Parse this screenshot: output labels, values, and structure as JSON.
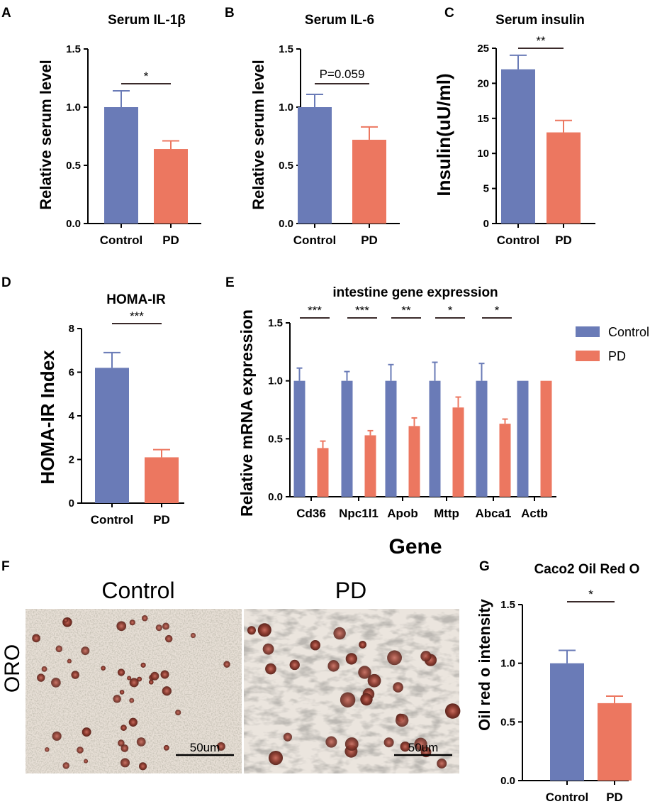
{
  "colors": {
    "control": "#6a7bb7",
    "pd": "#ec7760",
    "axis": "#000000",
    "sigline": "#3a2a2a",
    "bg": "#ffffff"
  },
  "chart_data": [
    {
      "id": "A",
      "panel_label": "A",
      "type": "bar",
      "title": "Serum IL-1β",
      "ylabel": "Relative serum level",
      "xlabel": "",
      "ylim": [
        0,
        1.5
      ],
      "yticks": [
        "0.0",
        "0.5",
        "1.0",
        "1.5"
      ],
      "categories": [
        "Control",
        "PD"
      ],
      "values": [
        1.0,
        0.64
      ],
      "errors": [
        0.14,
        0.07
      ],
      "sig": [
        {
          "label": "*"
        }
      ]
    },
    {
      "id": "B",
      "panel_label": "B",
      "type": "bar",
      "title": "Serum IL-6",
      "ylabel": "Relative serum level",
      "xlabel": "",
      "ylim": [
        0,
        1.5
      ],
      "yticks": [
        "0.0",
        "0.5",
        "1.0",
        "1.5"
      ],
      "categories": [
        "Control",
        "PD"
      ],
      "values": [
        1.0,
        0.72
      ],
      "errors": [
        0.11,
        0.11
      ],
      "sig": [
        {
          "label": "P=0.059"
        }
      ]
    },
    {
      "id": "C",
      "panel_label": "C",
      "type": "bar",
      "title": "Serum insulin",
      "ylabel": "Insulin(uU/ml)",
      "xlabel": "",
      "ylim": [
        0,
        25
      ],
      "yticks": [
        "0",
        "5",
        "10",
        "15",
        "20",
        "25"
      ],
      "categories": [
        "Control",
        "PD"
      ],
      "values": [
        22.0,
        13.0
      ],
      "errors": [
        2.0,
        1.7
      ],
      "sig": [
        {
          "label": "**"
        }
      ]
    },
    {
      "id": "D",
      "panel_label": "D",
      "type": "bar",
      "title": "HOMA-IR",
      "ylabel": "HOMA-IR Index",
      "xlabel": "",
      "ylim": [
        0,
        8
      ],
      "yticks": [
        "0",
        "2",
        "4",
        "6",
        "8"
      ],
      "categories": [
        "Control",
        "PD"
      ],
      "values": [
        6.2,
        2.1
      ],
      "errors": [
        0.7,
        0.35
      ],
      "sig": [
        {
          "label": "***"
        }
      ]
    },
    {
      "id": "E",
      "panel_label": "E",
      "type": "bar",
      "title": "intestine gene expression",
      "ylabel": "Relative mRNA expression",
      "xlabel": "Gene",
      "ylim": [
        0,
        1.5
      ],
      "yticks": [
        "0.0",
        "0.5",
        "1.0",
        "1.5"
      ],
      "categories": [
        "Cd36",
        "Npc1l1",
        "Apob",
        "Mttp",
        "Abca1",
        "Actb"
      ],
      "series": [
        {
          "name": "Control",
          "values": [
            1.0,
            1.0,
            1.0,
            1.0,
            1.0,
            1.0
          ],
          "errors": [
            0.11,
            0.08,
            0.14,
            0.16,
            0.15,
            0
          ]
        },
        {
          "name": "PD",
          "values": [
            0.42,
            0.53,
            0.61,
            0.77,
            0.63,
            1.0
          ],
          "errors": [
            0.06,
            0.04,
            0.07,
            0.09,
            0.04,
            0
          ]
        }
      ],
      "sig": [
        {
          "label": "***"
        },
        {
          "label": "***"
        },
        {
          "label": "**"
        },
        {
          "label": "*"
        },
        {
          "label": "*"
        }
      ],
      "legend": [
        "Control",
        "PD"
      ],
      "legend_position": "right"
    },
    {
      "id": "G",
      "panel_label": "G",
      "type": "bar",
      "title": "Caco2 Oil Red O",
      "ylabel": "Oil red o intensity",
      "xlabel": "",
      "ylim": [
        0,
        1.5
      ],
      "yticks": [
        "0.0",
        "0.5",
        "1.0",
        "1.5"
      ],
      "categories": [
        "Control",
        "PD"
      ],
      "values": [
        1.0,
        0.66
      ],
      "errors": [
        0.11,
        0.06
      ],
      "sig": [
        {
          "label": "*"
        }
      ]
    }
  ],
  "micrographs": {
    "panel_label": "F",
    "row_label": "ORO",
    "images": [
      {
        "title": "Control",
        "scale_bar": "50um"
      },
      {
        "title": "PD",
        "scale_bar": "50um"
      }
    ]
  }
}
